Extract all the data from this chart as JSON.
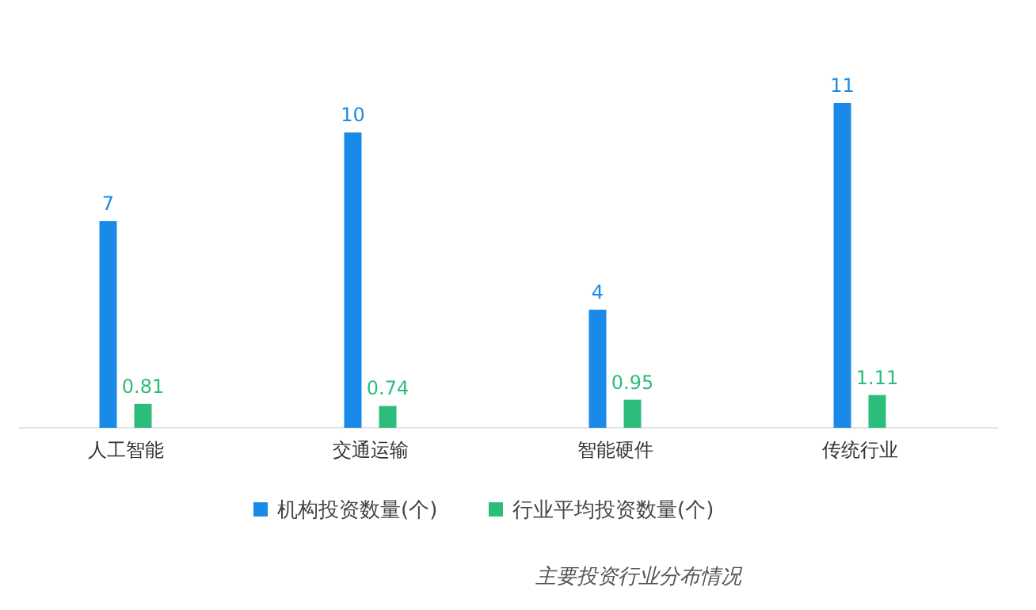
{
  "chart_data": {
    "type": "bar",
    "categories": [
      "人工智能",
      "交通运输",
      "智能硬件",
      "传统行业"
    ],
    "series": [
      {
        "name": "机构投资数量(个)",
        "color": "#1a8ae8",
        "values": [
          7,
          10,
          4,
          11
        ]
      },
      {
        "name": "行业平均投资数量(个)",
        "color": "#2dbd7b",
        "values": [
          0.81,
          0.74,
          0.95,
          1.11
        ]
      }
    ],
    "data_labels": true,
    "legend": "bottom",
    "grid": false,
    "annotations": [
      "主要投资行业分布情况"
    ]
  }
}
